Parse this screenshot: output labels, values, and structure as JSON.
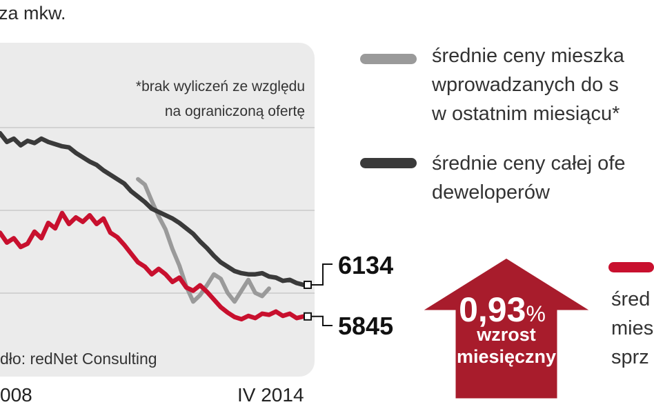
{
  "header": {
    "unit_text": "za mkw."
  },
  "chart_data": {
    "type": "line",
    "note_lines": [
      "*brak wyliczeń ze względu",
      "na ograniczoną ofertę"
    ],
    "source": "dło: redNet Consulting",
    "x_labels": [
      "008",
      "IV 2014"
    ],
    "series": [
      {
        "name": "średnie ceny całej oferty deweloperów",
        "color": "#3a3a3a",
        "end_label": "6134",
        "points": [
          [
            0,
            7520
          ],
          [
            1,
            7440
          ],
          [
            2,
            7470
          ],
          [
            3,
            7410
          ],
          [
            4,
            7450
          ],
          [
            5,
            7430
          ],
          [
            6,
            7470
          ],
          [
            7,
            7440
          ],
          [
            8,
            7420
          ],
          [
            9,
            7400
          ],
          [
            10,
            7390
          ],
          [
            11,
            7340
          ],
          [
            12,
            7300
          ],
          [
            13,
            7260
          ],
          [
            14,
            7230
          ],
          [
            15,
            7180
          ],
          [
            16,
            7140
          ],
          [
            17,
            7100
          ],
          [
            18,
            7060
          ],
          [
            19,
            6990
          ],
          [
            20,
            6940
          ],
          [
            21,
            6890
          ],
          [
            22,
            6830
          ],
          [
            23,
            6800
          ],
          [
            24,
            6770
          ],
          [
            25,
            6740
          ],
          [
            26,
            6700
          ],
          [
            27,
            6650
          ],
          [
            28,
            6600
          ],
          [
            29,
            6530
          ],
          [
            30,
            6470
          ],
          [
            31,
            6400
          ],
          [
            32,
            6340
          ],
          [
            33,
            6300
          ],
          [
            34,
            6260
          ],
          [
            35,
            6240
          ],
          [
            36,
            6230
          ],
          [
            37,
            6230
          ],
          [
            38,
            6240
          ],
          [
            39,
            6210
          ],
          [
            40,
            6200
          ],
          [
            41,
            6170
          ],
          [
            42,
            6180
          ],
          [
            43,
            6150
          ],
          [
            44,
            6134
          ]
        ]
      },
      {
        "name": "średnie ceny mieszkań wprowadzanych do sprzedaży w ostatnim miesiącu*",
        "color": "#9a9a9a",
        "end_label": "",
        "points": [
          [
            20,
            7100
          ],
          [
            21,
            7050
          ],
          [
            22,
            6900
          ],
          [
            23,
            6760
          ],
          [
            24,
            6640
          ],
          [
            25,
            6460
          ],
          [
            26,
            6310
          ],
          [
            27,
            6120
          ],
          [
            28,
            5980
          ],
          [
            29,
            6040
          ],
          [
            30,
            6130
          ],
          [
            31,
            6230
          ],
          [
            32,
            6190
          ],
          [
            33,
            6060
          ],
          [
            34,
            5980
          ],
          [
            35,
            6080
          ],
          [
            36,
            6180
          ],
          [
            37,
            6060
          ],
          [
            38,
            6030
          ],
          [
            39,
            6100
          ]
        ]
      },
      {
        "name": "śred… mies… sprz…",
        "color": "#c8102e",
        "end_label": "5845",
        "points": [
          [
            0,
            6610
          ],
          [
            1,
            6520
          ],
          [
            2,
            6560
          ],
          [
            3,
            6480
          ],
          [
            4,
            6510
          ],
          [
            5,
            6620
          ],
          [
            6,
            6560
          ],
          [
            7,
            6700
          ],
          [
            8,
            6650
          ],
          [
            9,
            6790
          ],
          [
            10,
            6690
          ],
          [
            11,
            6750
          ],
          [
            12,
            6710
          ],
          [
            13,
            6770
          ],
          [
            14,
            6690
          ],
          [
            15,
            6740
          ],
          [
            16,
            6610
          ],
          [
            17,
            6570
          ],
          [
            18,
            6500
          ],
          [
            19,
            6420
          ],
          [
            20,
            6340
          ],
          [
            21,
            6300
          ],
          [
            22,
            6230
          ],
          [
            23,
            6280
          ],
          [
            24,
            6230
          ],
          [
            25,
            6160
          ],
          [
            26,
            6200
          ],
          [
            27,
            6110
          ],
          [
            28,
            6080
          ],
          [
            29,
            6130
          ],
          [
            30,
            6070
          ],
          [
            31,
            6000
          ],
          [
            32,
            5930
          ],
          [
            33,
            5880
          ],
          [
            34,
            5840
          ],
          [
            35,
            5820
          ],
          [
            36,
            5850
          ],
          [
            37,
            5830
          ],
          [
            38,
            5870
          ],
          [
            39,
            5860
          ],
          [
            40,
            5890
          ],
          [
            41,
            5850
          ],
          [
            42,
            5870
          ],
          [
            43,
            5830
          ],
          [
            44,
            5845
          ]
        ]
      }
    ]
  },
  "legend": [
    {
      "lines": [
        "średnie ceny mieszka",
        "wprowadzanych do s",
        "w ostatnim miesiącu*"
      ],
      "color": "#9a9a9a"
    },
    {
      "lines": [
        "średnie ceny całej ofe",
        "deweloperów"
      ],
      "color": "#3a3a3a"
    },
    {
      "lines": [
        "śred",
        "mies",
        "sprz"
      ],
      "color": "#c8102e"
    }
  ],
  "callout": {
    "value": "0,93",
    "unit": "%",
    "line2": "wzrost",
    "line3": "miesięczny",
    "color": "#a81c2c"
  }
}
